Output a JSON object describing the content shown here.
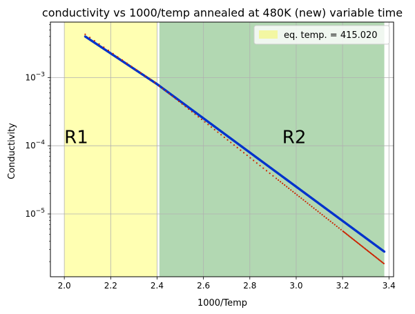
{
  "chart_data": {
    "type": "scatter",
    "title": "conductivity vs 1000/temp annealed at 480K (new) variable time",
    "xlabel": "1000/Temp",
    "ylabel": "Conductivity",
    "xlim": [
      1.94,
      3.42
    ],
    "ylim": [
      1.2e-06,
      0.0065
    ],
    "yscale": "log",
    "grid": true,
    "xticks": [
      2.0,
      2.2,
      2.4,
      2.6,
      2.8,
      3.0,
      3.2,
      3.4
    ],
    "xtick_labels": [
      "2.0",
      "2.2",
      "2.4",
      "2.6",
      "2.8",
      "3.0",
      "3.2",
      "3.4"
    ],
    "yticks": [
      1e-05,
      0.0001,
      0.001
    ],
    "ytick_labels": [
      {
        "base": "10",
        "exp": "−5"
      },
      {
        "base": "10",
        "exp": "−4"
      },
      {
        "base": "10",
        "exp": "−3"
      }
    ],
    "regions": [
      {
        "label": "R1",
        "x0": 2.0,
        "x1": 2.4,
        "color": "#ffffb2"
      },
      {
        "label": "R2",
        "x0": 2.41,
        "x1": 3.38,
        "color": "#b2d8b2"
      }
    ],
    "region_label_y": 0.000135,
    "legend": {
      "position": "top-right",
      "entries": [
        {
          "label": "eq. temp. = 415.020",
          "color": "#f3f7a3"
        }
      ]
    },
    "series": [
      {
        "color": "#0033cc",
        "style": "dense-points",
        "points": [
          {
            "x": 2.09,
            "y": 0.004
          },
          {
            "x": 2.4,
            "y": 0.0008
          },
          {
            "x": 3.38,
            "y": 2.8e-06
          }
        ]
      },
      {
        "color": "#cc2200",
        "style": "sparse-points",
        "points": [
          {
            "x": 2.09,
            "y": 0.0043
          },
          {
            "x": 2.4,
            "y": 0.0008
          },
          {
            "x": 3.38,
            "y": 1.85e-06
          }
        ]
      }
    ]
  }
}
